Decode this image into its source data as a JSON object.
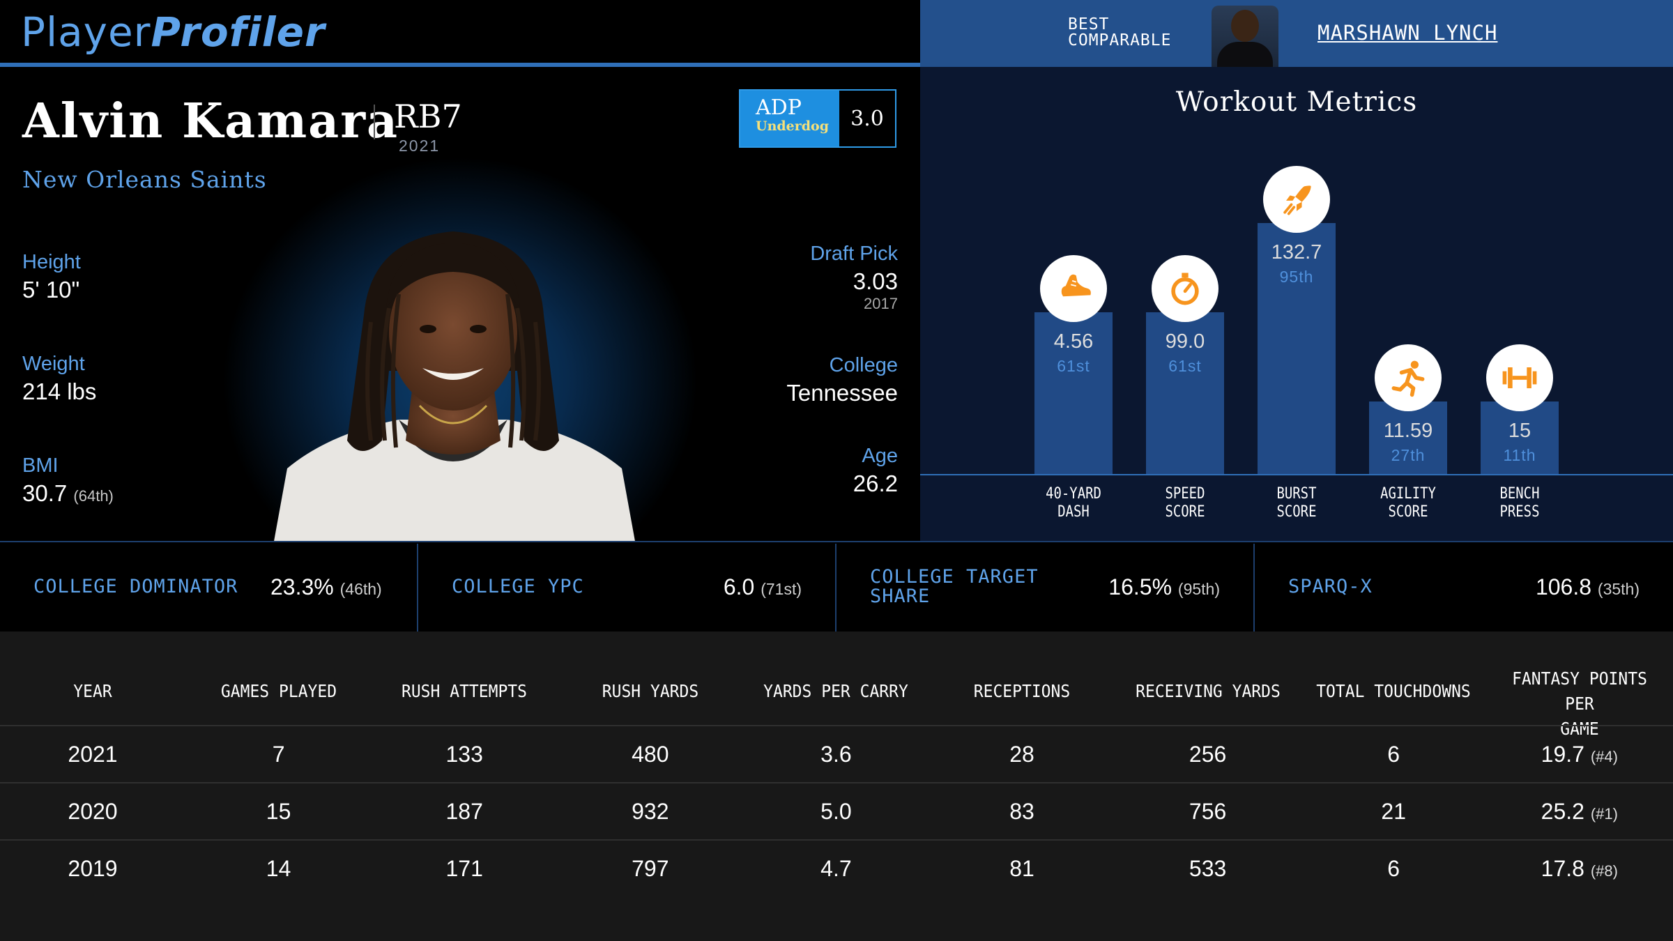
{
  "brand": {
    "logo_part1": "Player",
    "logo_part2": "Profiler"
  },
  "best_comparable": {
    "label_line1": "BEST",
    "label_line2": "COMPARABLE",
    "name": "MARSHAWN LYNCH"
  },
  "player": {
    "name": "Alvin Kamara",
    "position_rank": "RB7",
    "season": "2021",
    "team": "New Orleans Saints",
    "adp": {
      "label": "ADP",
      "source": "Underdog",
      "value": "3.0"
    },
    "height": {
      "label": "Height",
      "value": "5' 10\""
    },
    "weight": {
      "label": "Weight",
      "value": "214 lbs"
    },
    "bmi": {
      "label": "BMI",
      "value": "30.7",
      "rank": "(64th)"
    },
    "draft_pick": {
      "label": "Draft Pick",
      "value": "3.03",
      "year": "2017"
    },
    "college": {
      "label": "College",
      "value": "Tennessee"
    },
    "age": {
      "label": "Age",
      "value": "26.2"
    }
  },
  "workout": {
    "title": "Workout Metrics",
    "metrics": [
      {
        "label_l1": "40-YARD",
        "label_l2": "DASH",
        "value": "4.56",
        "percentile": "61st",
        "level": 61,
        "icon": "shoe-icon"
      },
      {
        "label_l1": "SPEED",
        "label_l2": "SCORE",
        "value": "99.0",
        "percentile": "61st",
        "level": 61,
        "icon": "stopwatch-icon"
      },
      {
        "label_l1": "BURST",
        "label_l2": "SCORE",
        "value": "132.7",
        "percentile": "95th",
        "level": 95,
        "icon": "rocket-icon"
      },
      {
        "label_l1": "AGILITY",
        "label_l2": "SCORE",
        "value": "11.59",
        "percentile": "27th",
        "level": 27,
        "icon": "runner-icon"
      },
      {
        "label_l1": "BENCH",
        "label_l2": "PRESS",
        "value": "15",
        "percentile": "11th",
        "level": 11,
        "icon": "dumbbell-icon"
      }
    ]
  },
  "college_stats": [
    {
      "label_l1": "COLLEGE DOMINATOR",
      "label_l2": "",
      "value": "23.3%",
      "rank": "(46th)"
    },
    {
      "label_l1": "COLLEGE YPC",
      "label_l2": "",
      "value": "6.0",
      "rank": "(71st)"
    },
    {
      "label_l1": "COLLEGE TARGET",
      "label_l2": "SHARE",
      "value": "16.5%",
      "rank": "(95th)"
    },
    {
      "label_l1": "SPARQ-X",
      "label_l2": "",
      "value": "106.8",
      "rank": "(35th)"
    }
  ],
  "table": {
    "headers": [
      {
        "l1": "YEAR",
        "l2": ""
      },
      {
        "l1": "GAMES PLAYED",
        "l2": ""
      },
      {
        "l1": "RUSH ATTEMPTS",
        "l2": ""
      },
      {
        "l1": "RUSH YARDS",
        "l2": ""
      },
      {
        "l1": "YARDS PER CARRY",
        "l2": ""
      },
      {
        "l1": "RECEPTIONS",
        "l2": ""
      },
      {
        "l1": "RECEIVING YARDS",
        "l2": ""
      },
      {
        "l1": "TOTAL TOUCHDOWNS",
        "l2": ""
      },
      {
        "l1": "FANTASY POINTS PER",
        "l2": "GAME"
      }
    ],
    "rows": [
      {
        "cells": [
          "2021",
          "7",
          "133",
          "480",
          "3.6",
          "28",
          "256",
          "6",
          "19.7"
        ],
        "fp_rank": "(#4)"
      },
      {
        "cells": [
          "2020",
          "15",
          "187",
          "932",
          "5.0",
          "83",
          "756",
          "21",
          "25.2"
        ],
        "fp_rank": "(#1)"
      },
      {
        "cells": [
          "2019",
          "14",
          "171",
          "797",
          "4.7",
          "81",
          "533",
          "6",
          "17.8"
        ],
        "fp_rank": "(#8)"
      }
    ]
  },
  "colors": {
    "accent_blue": "#5fa3ea",
    "bar_blue": "#214a86",
    "icon_orange": "#f7941d",
    "adp_blue": "#1e8fe0"
  }
}
